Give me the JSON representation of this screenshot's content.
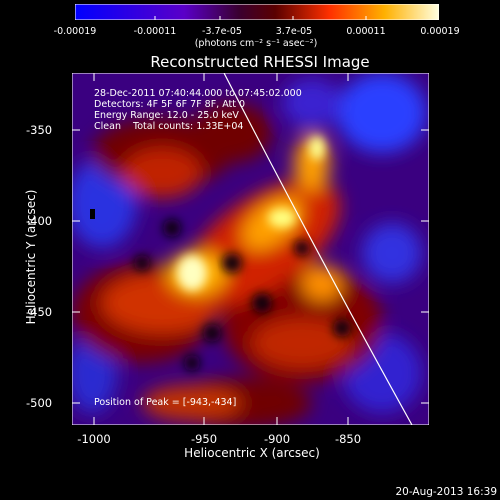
{
  "colorbar": {
    "ticks": [
      "-0.00019",
      "-0.00011",
      "-3.7e-05",
      "3.7e-05",
      "0.00011",
      "0.00019"
    ],
    "units": "(photons cm⁻² s⁻¹ asec⁻²)"
  },
  "title": "Reconstructed RHESSI Image",
  "info": {
    "line1": "28-Dec-2011 07:40:44.000 to 07:45:02.000",
    "line2": "Detectors: 4F 5F 6F 7F 8F, Att 0",
    "line3": "Energy Range: 12.0 - 25.0 keV",
    "line4": "Clean    Total counts: 1.33E+04"
  },
  "peak": "Position of Peak = [-943,-434]",
  "axes": {
    "xlabel": "Heliocentric X (arcsec)",
    "ylabel": "Heliocentric Y (arcsec)",
    "xticks": [
      "-1000",
      "-950",
      "-900",
      "-850"
    ],
    "yticks": [
      "-350",
      "-400",
      "-450",
      "-500"
    ]
  },
  "footer": "20-Aug-2013 16:39"
}
